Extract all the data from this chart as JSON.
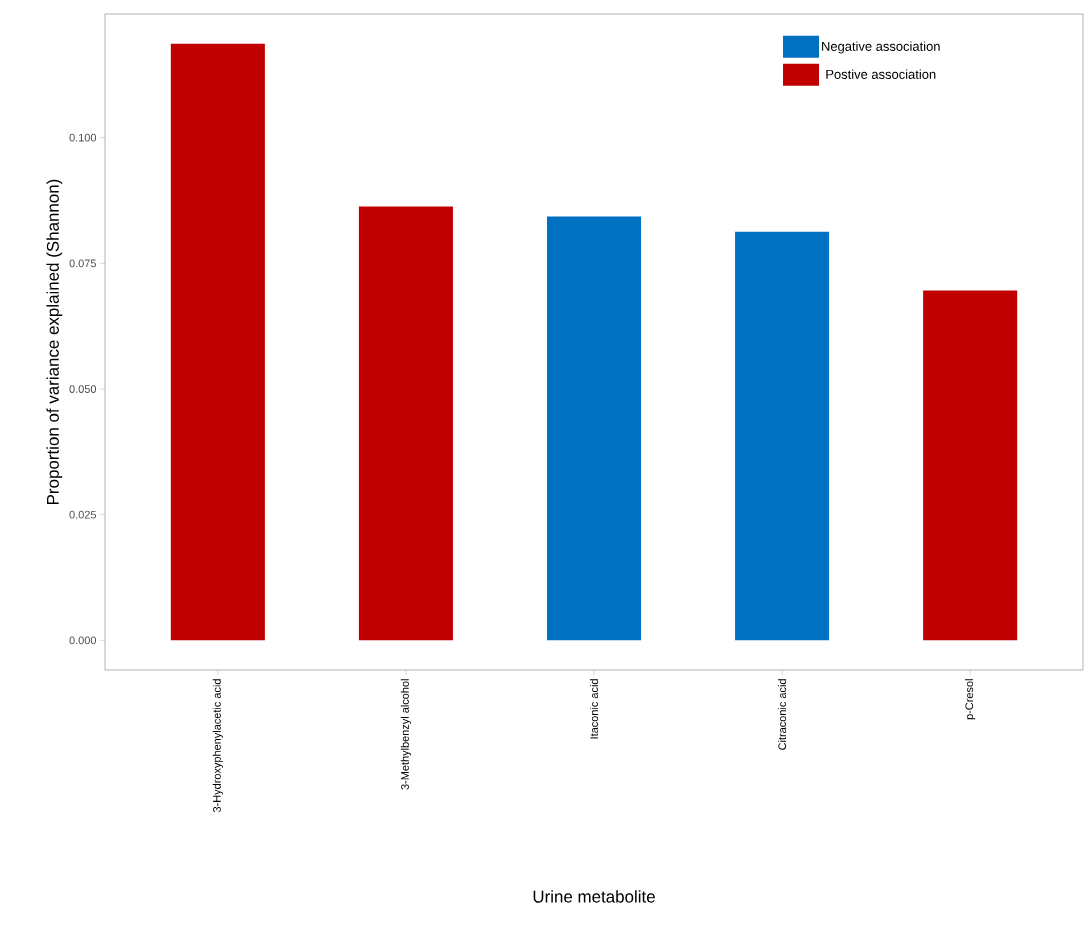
{
  "chart_data": {
    "type": "bar",
    "xlabel": "Urine metabolite",
    "ylabel": "Proportion of variance explained (Shannon)",
    "categories": [
      "3-Hydroxyphenylacetic acid",
      "3-Methylbenzyl alcohol",
      "Itaconic acid",
      "Citraconic acid",
      "p-Cresol"
    ],
    "series": [
      {
        "name": "Negative association",
        "color": "#0070c0",
        "values": [
          null,
          null,
          0.0843,
          0.0813,
          null
        ]
      },
      {
        "name": "Postive association",
        "color": "#c00000",
        "values": [
          0.1187,
          0.0863,
          null,
          null,
          0.0696
        ]
      }
    ],
    "ylim": [
      -0.0059,
      0.1246
    ],
    "yticks": [
      {
        "value": 0,
        "label": "0.000"
      },
      {
        "value": 0.025,
        "label": "0.025"
      },
      {
        "value": 0.05,
        "label": "0.050"
      },
      {
        "value": 0.075,
        "label": "0.075"
      },
      {
        "value": 0.1,
        "label": "0.100"
      }
    ],
    "grid": false,
    "legend": "top right"
  }
}
